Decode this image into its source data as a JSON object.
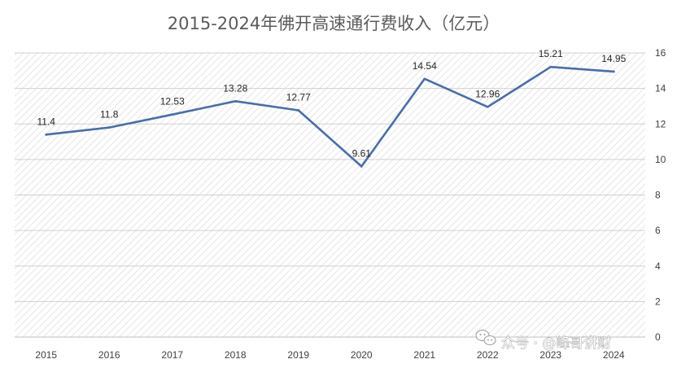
{
  "chart_data": {
    "type": "line",
    "title": "2015-2024年佛开高速通行费收入（亿元）",
    "categories": [
      "2015",
      "2016",
      "2017",
      "2018",
      "2019",
      "2020",
      "2021",
      "2022",
      "2023",
      "2024"
    ],
    "series": [
      {
        "values": [
          11.4,
          11.8,
          12.53,
          13.28,
          12.77,
          9.61,
          14.54,
          12.96,
          15.21,
          14.95
        ]
      }
    ],
    "data_labels": [
      "11.4",
      "11.8",
      "12.53",
      "13.28",
      "12.77",
      "9.61",
      "14.54",
      "12.96",
      "15.21",
      "14.95"
    ],
    "y_ticks": [
      "0",
      "2",
      "4",
      "6",
      "8",
      "10",
      "12",
      "14",
      "16"
    ],
    "ylim": [
      0,
      16
    ],
    "y_axis_side": "right",
    "grid": true,
    "line_color": "#4a6fa5",
    "background": "hatched"
  },
  "watermark": {
    "icon": "wechat-icon",
    "text": "众号 · @峰哥讲财"
  }
}
